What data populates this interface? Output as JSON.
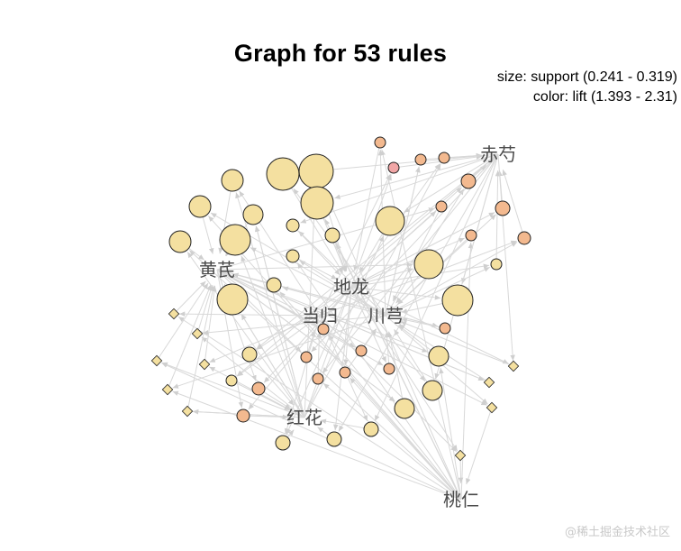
{
  "chart_data": {
    "type": "network-graph",
    "title": "Graph for 53 rules",
    "size_legend": "size: support (0.241 - 0.319)",
    "color_legend": "color: lift (1.393 - 2.31)",
    "support_range": [
      0.241,
      0.319
    ],
    "lift_range": [
      1.393,
      2.31
    ],
    "num_rules": 53,
    "items": [
      "赤芍",
      "黄芪",
      "地龙",
      "当归",
      "川芎",
      "红花",
      "桃仁"
    ],
    "colors": {
      "rule_low_lift": "#f4e0a0",
      "rule_mid_lift": "#f3b98f",
      "rule_high_lift": "#f1a6a6",
      "edge": "#d8d8d8",
      "label": "#4a4a4a"
    }
  },
  "watermark": "@稀土掘金技术社区"
}
